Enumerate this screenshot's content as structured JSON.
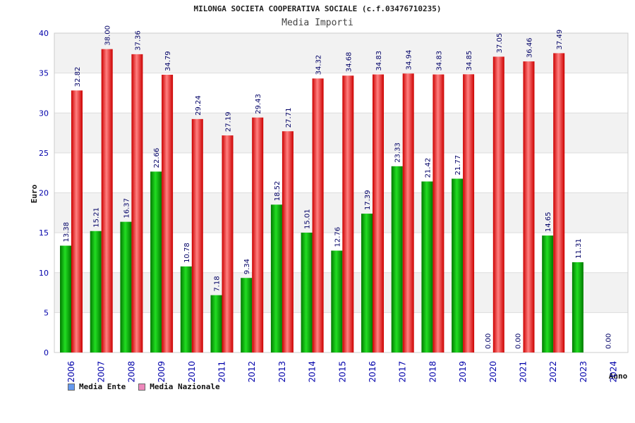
{
  "title": "MILONGA SOCIETA COOPERATIVA SOCIALE (c.f.03476710235)",
  "subtitle": "Media Importi",
  "chart_data": {
    "type": "bar",
    "ylabel": "Euro",
    "xlabel": "Anno",
    "ylim": [
      0,
      40
    ],
    "yticks": [
      0,
      5,
      10,
      15,
      20,
      25,
      30,
      35,
      40
    ],
    "grid": true,
    "legend_position": "bottom-left",
    "categories": [
      "2006",
      "2007",
      "2008",
      "2009",
      "2010",
      "2011",
      "2012",
      "2013",
      "2014",
      "2015",
      "2016",
      "2017",
      "2018",
      "2019",
      "2020",
      "2021",
      "2022",
      "2023",
      "2024"
    ],
    "series": [
      {
        "name": "Media Ente",
        "color": "#00aa00",
        "legend_color": "#6699ee",
        "values": [
          13.38,
          15.21,
          16.37,
          22.66,
          10.78,
          7.18,
          9.34,
          18.52,
          15.01,
          12.76,
          17.39,
          23.33,
          21.42,
          21.77,
          0.0,
          0.0,
          14.65,
          11.31,
          0.0
        ],
        "labels": [
          "13.38",
          "15.21",
          "16.37",
          "22.66",
          "10.78",
          "7.18",
          "9.34",
          "18.52",
          "15.01",
          "12.76",
          "17.39",
          "23.33",
          "21.42",
          "21.77",
          "0.00",
          "0.00",
          "14.65",
          "11.31",
          "0.00"
        ]
      },
      {
        "name": "Media Nazionale",
        "color": "#ee2222",
        "legend_color": "#ee88bb",
        "values": [
          32.82,
          38.0,
          37.36,
          34.79,
          29.24,
          27.19,
          29.43,
          27.71,
          34.32,
          34.68,
          34.83,
          34.94,
          34.83,
          34.85,
          37.05,
          36.46,
          37.49,
          null,
          null
        ],
        "labels": [
          "32.82",
          "38.00",
          "37.36",
          "34.79",
          "29.24",
          "27.19",
          "29.43",
          "27.71",
          "34.32",
          "34.68",
          "34.83",
          "34.94",
          "34.83",
          "34.85",
          "37.05",
          "36.46",
          "37.49",
          "",
          ""
        ]
      }
    ]
  }
}
